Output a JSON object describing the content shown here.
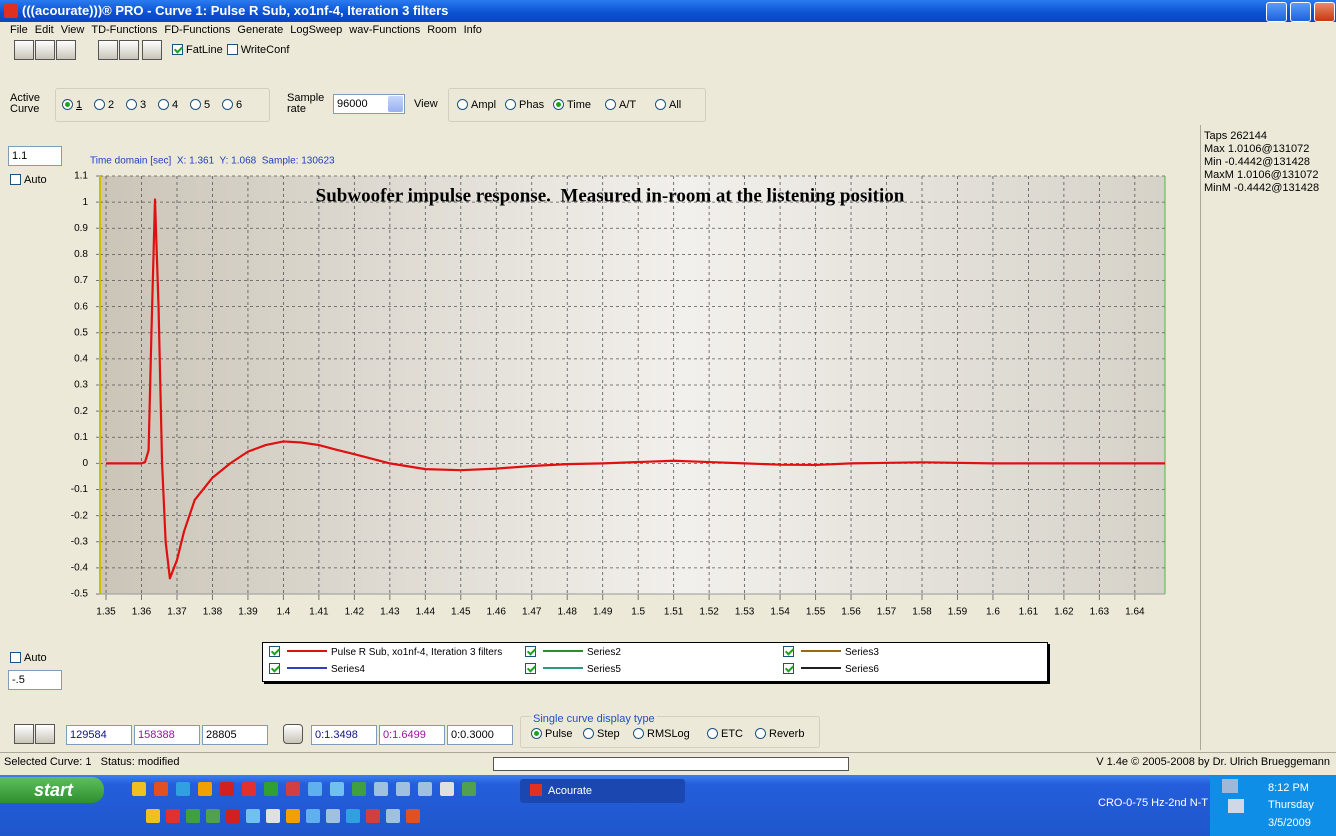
{
  "window": {
    "title": "(((acourate)))® PRO - Curve 1: Pulse R Sub, xo1nf-4, Iteration 3 filters"
  },
  "menu": [
    "File",
    "Edit",
    "View",
    "TD-Functions",
    "FD-Functions",
    "Generate",
    "LogSweep",
    "wav-Functions",
    "Room",
    "Info"
  ],
  "toolbar": {
    "options": [
      "FatLine",
      "WriteConf"
    ],
    "checked": [
      true,
      false
    ]
  },
  "active_curve": {
    "label": "Active Curve",
    "options": [
      "1",
      "2",
      "3",
      "4",
      "5",
      "6"
    ],
    "selected": 0
  },
  "sample_rate": {
    "label": "Sample rate",
    "value": "96000"
  },
  "view": {
    "label": "View",
    "options": [
      "Ampl",
      "Phas",
      "Time",
      "A/T",
      "All"
    ],
    "selected": 2
  },
  "y_max_input": "1.1",
  "auto_top": "Auto",
  "auto_bottom": "Auto",
  "y_min_input": "-.5",
  "info": [
    "Taps 262144",
    "Max 1.0106@131072",
    "Min -0.4442@131428",
    "MaxM 1.0106@131072",
    "MinM -0.4442@131428"
  ],
  "bottom": {
    "fields": [
      "129584",
      "158388",
      "28805"
    ],
    "time_fields": [
      "0:1.3498",
      "0:1.6499",
      "0:0.3000"
    ],
    "display_type": {
      "label": "Single curve display type",
      "options": [
        "Pulse",
        "Step",
        "RMSLog",
        "ETC",
        "Reverb"
      ],
      "selected": 0
    }
  },
  "status": {
    "left": "Selected Curve: 1   Status: modified",
    "right": "V 1.4e © 2005-2008 by Dr. Ulrich Brueggemann"
  },
  "taskbar": {
    "start": "start",
    "task": "Acourate",
    "tray_label": "CRO-0-75 Hz-2nd N-T",
    "time": "8:12 PM",
    "day": "Thursday",
    "date": "3/5/2009"
  },
  "chart_data": {
    "type": "line",
    "subtitle": "Time domain [sec]  X: 1.361  Y: 1.068  Sample: 130623",
    "annotation": "Subwoofer impulse response.  Measured in-room at the listening position",
    "x": [
      1.35,
      1.36,
      1.361,
      1.362,
      1.3628,
      1.3638,
      1.3648,
      1.3658,
      1.3668,
      1.368,
      1.37,
      1.372,
      1.375,
      1.38,
      1.385,
      1.39,
      1.395,
      1.4,
      1.405,
      1.41,
      1.415,
      1.42,
      1.43,
      1.44,
      1.45,
      1.46,
      1.47,
      1.48,
      1.49,
      1.5,
      1.51,
      1.52,
      1.53,
      1.54,
      1.55,
      1.56,
      1.58,
      1.6,
      1.62,
      1.6485
    ],
    "series": [
      {
        "name": "Pulse R Sub, xo1nf-4, Iteration 3 filters",
        "color": "#e01010",
        "values": [
          0,
          0,
          0.005,
          0.05,
          0.5,
          1.01,
          0.6,
          0,
          -0.3,
          -0.44,
          -0.37,
          -0.26,
          -0.14,
          -0.055,
          0,
          0.045,
          0.07,
          0.084,
          0.08,
          0.07,
          0.052,
          0.035,
          0,
          -0.022,
          -0.026,
          -0.02,
          -0.01,
          -0.003,
          0,
          0.005,
          0.01,
          0.005,
          0,
          -0.005,
          -0.006,
          0,
          0.004,
          0,
          0,
          0
        ]
      },
      {
        "name": "Series2",
        "color": "#2e8b2e",
        "values": [
          null,
          null,
          null,
          null,
          null,
          null,
          null,
          null,
          null,
          null,
          null,
          null,
          null,
          null,
          null,
          null,
          null,
          null,
          null,
          null,
          null,
          null,
          null,
          null,
          null,
          null,
          null,
          null,
          null,
          null,
          null,
          null,
          null,
          null,
          null,
          null,
          null,
          null,
          null,
          null
        ]
      },
      {
        "name": "Series3",
        "color": "#9a6a10",
        "values": [
          null,
          null,
          null,
          null,
          null,
          null,
          null,
          null,
          null,
          null,
          null,
          null,
          null,
          null,
          null,
          null,
          null,
          null,
          null,
          null,
          null,
          null,
          null,
          null,
          null,
          null,
          null,
          null,
          null,
          null,
          null,
          null,
          null,
          null,
          null,
          null,
          null,
          null,
          null,
          null
        ]
      },
      {
        "name": "Series4",
        "color": "#3040c0",
        "values": [
          null,
          null,
          null,
          null,
          null,
          null,
          null,
          null,
          null,
          null,
          null,
          null,
          null,
          null,
          null,
          null,
          null,
          null,
          null,
          null,
          null,
          null,
          null,
          null,
          null,
          null,
          null,
          null,
          null,
          null,
          null,
          null,
          null,
          null,
          null,
          null,
          null,
          null,
          null,
          null
        ]
      },
      {
        "name": "Series5",
        "color": "#2a9a80",
        "values": [
          null,
          null,
          null,
          null,
          null,
          null,
          null,
          null,
          null,
          null,
          null,
          null,
          null,
          null,
          null,
          null,
          null,
          null,
          null,
          null,
          null,
          null,
          null,
          null,
          null,
          null,
          null,
          null,
          null,
          null,
          null,
          null,
          null,
          null,
          null,
          null,
          null,
          null,
          null,
          null
        ]
      },
      {
        "name": "Series6",
        "color": "#202020",
        "values": [
          null,
          null,
          null,
          null,
          null,
          null,
          null,
          null,
          null,
          null,
          null,
          null,
          null,
          null,
          null,
          null,
          null,
          null,
          null,
          null,
          null,
          null,
          null,
          null,
          null,
          null,
          null,
          null,
          null,
          null,
          null,
          null,
          null,
          null,
          null,
          null,
          null,
          null,
          null,
          null
        ]
      }
    ],
    "xlim": [
      1.3483,
      1.6485
    ],
    "ylim": [
      -0.5,
      1.1
    ],
    "xticks": [
      1.35,
      1.36,
      1.37,
      1.38,
      1.39,
      1.4,
      1.41,
      1.42,
      1.43,
      1.44,
      1.45,
      1.46,
      1.47,
      1.48,
      1.49,
      1.5,
      1.51,
      1.52,
      1.53,
      1.54,
      1.55,
      1.56,
      1.57,
      1.58,
      1.59,
      1.6,
      1.61,
      1.62,
      1.63,
      1.64
    ],
    "yticks": [
      1.1,
      1,
      0.9,
      0.8,
      0.7,
      0.6,
      0.5,
      0.4,
      0.3,
      0.2,
      0.1,
      0,
      -0.1,
      -0.2,
      -0.3,
      -0.4,
      -0.5
    ],
    "grid": true
  }
}
